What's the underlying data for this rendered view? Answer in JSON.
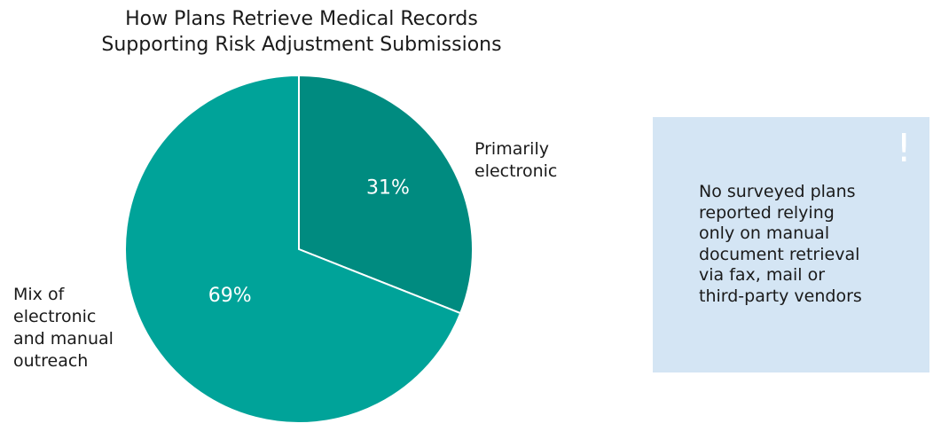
{
  "chart_data": {
    "type": "pie",
    "title": [
      "How Plans Retrieve Medical Records",
      "Supporting Risk Adjustment Submissions"
    ],
    "slices": [
      {
        "label_lines": [
          "Primarily",
          "electronic"
        ],
        "value": 31,
        "value_label": "31%",
        "color": "#008b80"
      },
      {
        "label_lines": [
          "Mix of",
          "electronic",
          "and manual",
          "outreach"
        ],
        "value": 69,
        "value_label": "69%",
        "color": "#00a399"
      }
    ],
    "slice_border_color": "#ffffff",
    "legend": "none (labels beside slices)"
  },
  "callout": {
    "icon": "exclamation-icon",
    "lines": [
      "No surveyed plans",
      "reported relying",
      "only on manual",
      "document retrieval",
      "via fax, mail or",
      "third-party vendors"
    ],
    "background": "#d4e5f4"
  }
}
